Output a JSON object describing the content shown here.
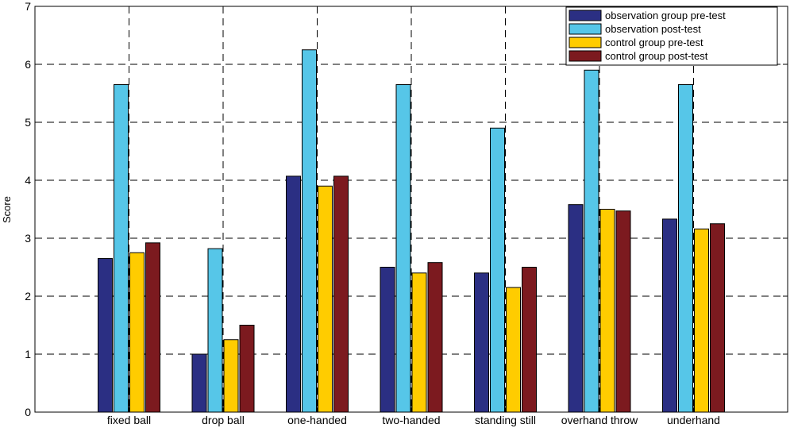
{
  "chart_data": {
    "type": "bar",
    "title": "",
    "xlabel": "",
    "ylabel": "Score",
    "ylim": [
      0,
      7
    ],
    "yticks": [
      "0",
      "1",
      "2",
      "3",
      "4",
      "5",
      "6",
      "7"
    ],
    "grid": true,
    "legend_position": "top-right",
    "categories": [
      "fixed ball",
      "drop ball",
      "one-handed",
      "two-handed",
      "standing still",
      "overhand throw",
      "underhand"
    ],
    "series": [
      {
        "name": "observation group pre-test",
        "color": "#2b2f83",
        "values": [
          2.65,
          1.0,
          4.07,
          2.5,
          2.4,
          3.58,
          3.33
        ]
      },
      {
        "name": "observation post-test",
        "color": "#56c6e8",
        "values": [
          5.65,
          2.82,
          6.25,
          5.65,
          4.9,
          5.9,
          5.65
        ]
      },
      {
        "name": "control group pre-test",
        "color": "#ffcc00",
        "values": [
          2.75,
          1.25,
          3.9,
          2.4,
          2.15,
          3.5,
          3.16
        ]
      },
      {
        "name": "control group post-test",
        "color": "#7c1a1f",
        "values": [
          2.92,
          1.5,
          4.07,
          2.58,
          2.5,
          3.47,
          3.25
        ]
      }
    ]
  }
}
